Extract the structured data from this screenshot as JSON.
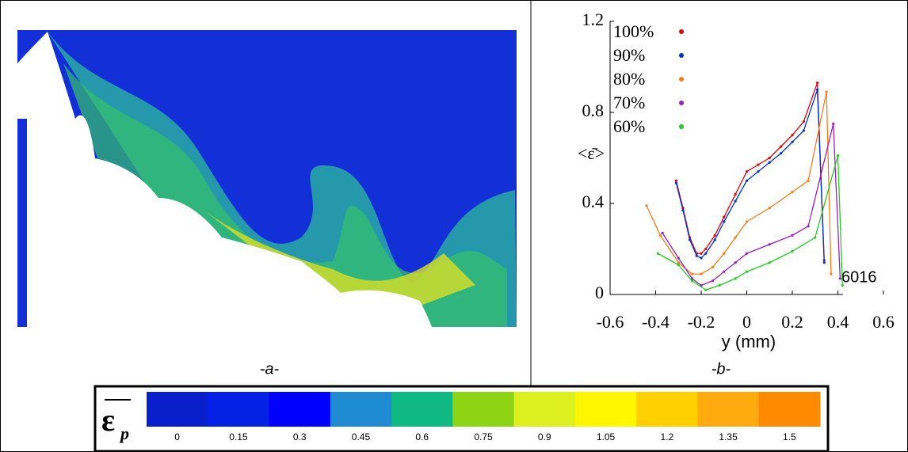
{
  "panel_a": {
    "caption": "-a-"
  },
  "chart_data": {
    "type": "line",
    "ylabel": "<ε̄>",
    "xlabel": "y (mm)",
    "caption": "-b-",
    "annotation": "6016",
    "xlim": [
      -0.6,
      0.6
    ],
    "ylim": [
      0,
      1.2
    ],
    "xticks": [
      -0.6,
      -0.4,
      -0.2,
      0,
      0.2,
      0.4,
      0.6
    ],
    "yticks": [
      0,
      0.4,
      0.8,
      1.2
    ],
    "series": [
      {
        "name": "100%",
        "color": "#e8000b",
        "x": [
          -0.31,
          -0.28,
          -0.25,
          -0.22,
          -0.2,
          -0.18,
          -0.14,
          -0.1,
          -0.05,
          0,
          0.05,
          0.1,
          0.15,
          0.2,
          0.25,
          0.31,
          0.34
        ],
        "values": [
          0.5,
          0.38,
          0.25,
          0.18,
          0.18,
          0.2,
          0.26,
          0.34,
          0.44,
          0.54,
          0.57,
          0.6,
          0.65,
          0.7,
          0.76,
          0.93,
          0.15
        ]
      },
      {
        "name": "90%",
        "color": "#0033cc",
        "x": [
          -0.31,
          -0.28,
          -0.25,
          -0.22,
          -0.2,
          -0.18,
          -0.14,
          -0.1,
          -0.05,
          0,
          0.05,
          0.1,
          0.15,
          0.2,
          0.25,
          0.31,
          0.34
        ],
        "values": [
          0.49,
          0.37,
          0.24,
          0.17,
          0.16,
          0.18,
          0.24,
          0.32,
          0.41,
          0.5,
          0.54,
          0.58,
          0.62,
          0.67,
          0.72,
          0.9,
          0.14
        ]
      },
      {
        "name": "80%",
        "color": "#ff7b17",
        "x": [
          -0.44,
          -0.38,
          -0.3,
          -0.24,
          -0.2,
          -0.15,
          -0.1,
          -0.05,
          0,
          0.1,
          0.2,
          0.27,
          0.35,
          0.37
        ],
        "values": [
          0.39,
          0.26,
          0.14,
          0.09,
          0.09,
          0.12,
          0.18,
          0.25,
          0.32,
          0.38,
          0.45,
          0.5,
          0.89,
          0.09
        ]
      },
      {
        "name": "70%",
        "color": "#9a1fc0",
        "x": [
          -0.37,
          -0.3,
          -0.24,
          -0.2,
          -0.15,
          -0.1,
          -0.05,
          0,
          0.1,
          0.2,
          0.27,
          0.38,
          0.41
        ],
        "values": [
          0.27,
          0.16,
          0.07,
          0.04,
          0.06,
          0.1,
          0.14,
          0.18,
          0.22,
          0.26,
          0.3,
          0.75,
          0.07
        ]
      },
      {
        "name": "60%",
        "color": "#22cc22",
        "x": [
          -0.39,
          -0.3,
          -0.24,
          -0.18,
          -0.12,
          -0.05,
          0,
          0.1,
          0.2,
          0.3,
          0.4,
          0.42
        ],
        "values": [
          0.18,
          0.13,
          0.06,
          0.02,
          0.04,
          0.07,
          0.1,
          0.14,
          0.19,
          0.25,
          0.61,
          0.04
        ]
      }
    ]
  },
  "colorbar": {
    "label": "ε",
    "subscript": "p",
    "ticks": [
      0,
      0.15,
      0.3,
      0.45,
      0.6,
      0.75,
      0.9,
      1.05,
      1.2,
      1.35,
      1.5
    ],
    "colors": [
      "#0a1fcc",
      "#0422e6",
      "#0000ff",
      "#1e8ad2",
      "#10b882",
      "#8cd414",
      "#dcf020",
      "#fff600",
      "#ffd000",
      "#ffab10",
      "#ff8a00"
    ]
  }
}
